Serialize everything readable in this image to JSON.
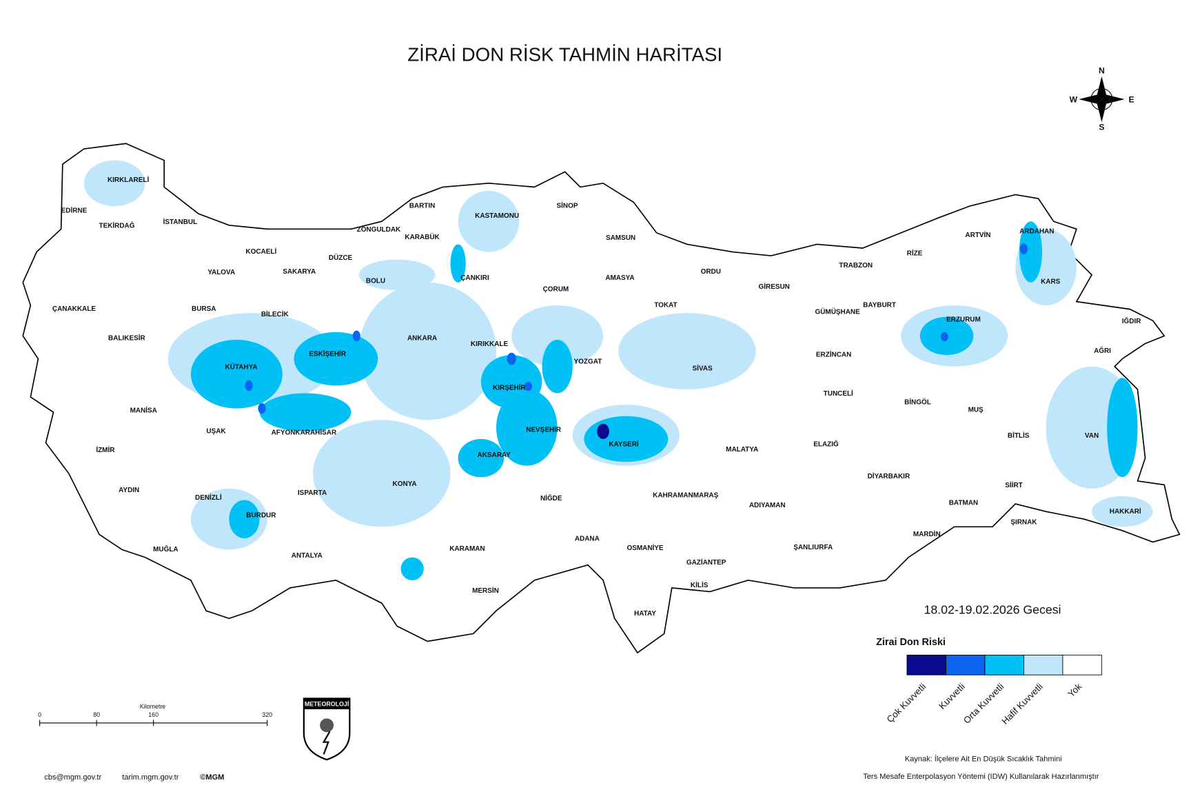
{
  "title": "ZİRAİ DON RİSK TAHMİN HARİTASI",
  "date": "18.02-19.02.2026 Gecesi",
  "legend": {
    "title": "Zirai Don Riski",
    "items": [
      {
        "label": "Çok Kuvvetli",
        "color": "#0a0a8f"
      },
      {
        "label": "Kuvvetli",
        "color": "#0a64f0"
      },
      {
        "label": "Orta Kuvvetli",
        "color": "#00c0f5"
      },
      {
        "label": "Hafif Kuvvetli",
        "color": "#bfe6fb"
      },
      {
        "label": "Yok",
        "color": "#ffffff"
      }
    ]
  },
  "provinces": [
    "KIRKLARELİ",
    "EDİRNE",
    "TEKİRDAĞ",
    "İSTANBUL",
    "KOCAELİ",
    "YALOVA",
    "SAKARYA",
    "DÜZCE",
    "ZONGULDAK",
    "BARTIN",
    "KARABÜK",
    "KASTAMONU",
    "SİNOP",
    "SAMSUN",
    "ÇANAKKALE",
    "BURSA",
    "BİLECİK",
    "BOLU",
    "ÇANKIRI",
    "ÇORUM",
    "AMASYA",
    "TOKAT",
    "ORDU",
    "GİRESUN",
    "TRABZON",
    "RİZE",
    "ARTVİN",
    "ARDAHAN",
    "KARS",
    "GÜMÜŞHANE",
    "BAYBURT",
    "ERZURUM",
    "IĞDIR",
    "AĞRI",
    "BALIKESİR",
    "ESKİŞEHİR",
    "ANKARA",
    "KIRIKKALE",
    "YOZGAT",
    "SİVAS",
    "ERZİNCAN",
    "KÜTAHYA",
    "KIRŞEHİR",
    "TUNCELİ",
    "BİNGÖL",
    "MUŞ",
    "VAN",
    "BİTLİS",
    "MANİSA",
    "UŞAK",
    "AFYONKARAHİSAR",
    "NEVŞEHİR",
    "KAYSERİ",
    "MALATYA",
    "ELAZIĞ",
    "İZMİR",
    "AKSARAY",
    "DİYARBAKIR",
    "SİİRT",
    "AYDIN",
    "ISPARTA",
    "KONYA",
    "DENİZLİ",
    "NİĞDE",
    "KAHRAMANMARAŞ",
    "ADIYAMAN",
    "BATMAN",
    "HAKKARİ",
    "BURDUR",
    "ŞIRNAK",
    "MUĞLA",
    "KARAMAN",
    "ADANA",
    "OSMANİYE",
    "ŞANLIURFA",
    "MARDİN",
    "ANTALYA",
    "GAZİANTEP",
    "KİLİS",
    "MERSİN",
    "HATAY"
  ],
  "scale_bar": {
    "unit": "Kilometre",
    "ticks": [
      0,
      80,
      160,
      320
    ]
  },
  "compass": {
    "n": "N",
    "e": "E",
    "s": "S",
    "w": "W"
  },
  "logo": "METEOROLOJİ",
  "source": "Kaynak: İlçelere Ait En Düşük Sıcaklık Tahmini",
  "method": "Ters Mesafe Enterpolasyon Yöntemi (IDW) Kullanılarak Hazırlanmıştır",
  "footer": [
    "cbs@mgm.gov.tr",
    "tarim.mgm.gov.tr",
    "©MGM"
  ]
}
